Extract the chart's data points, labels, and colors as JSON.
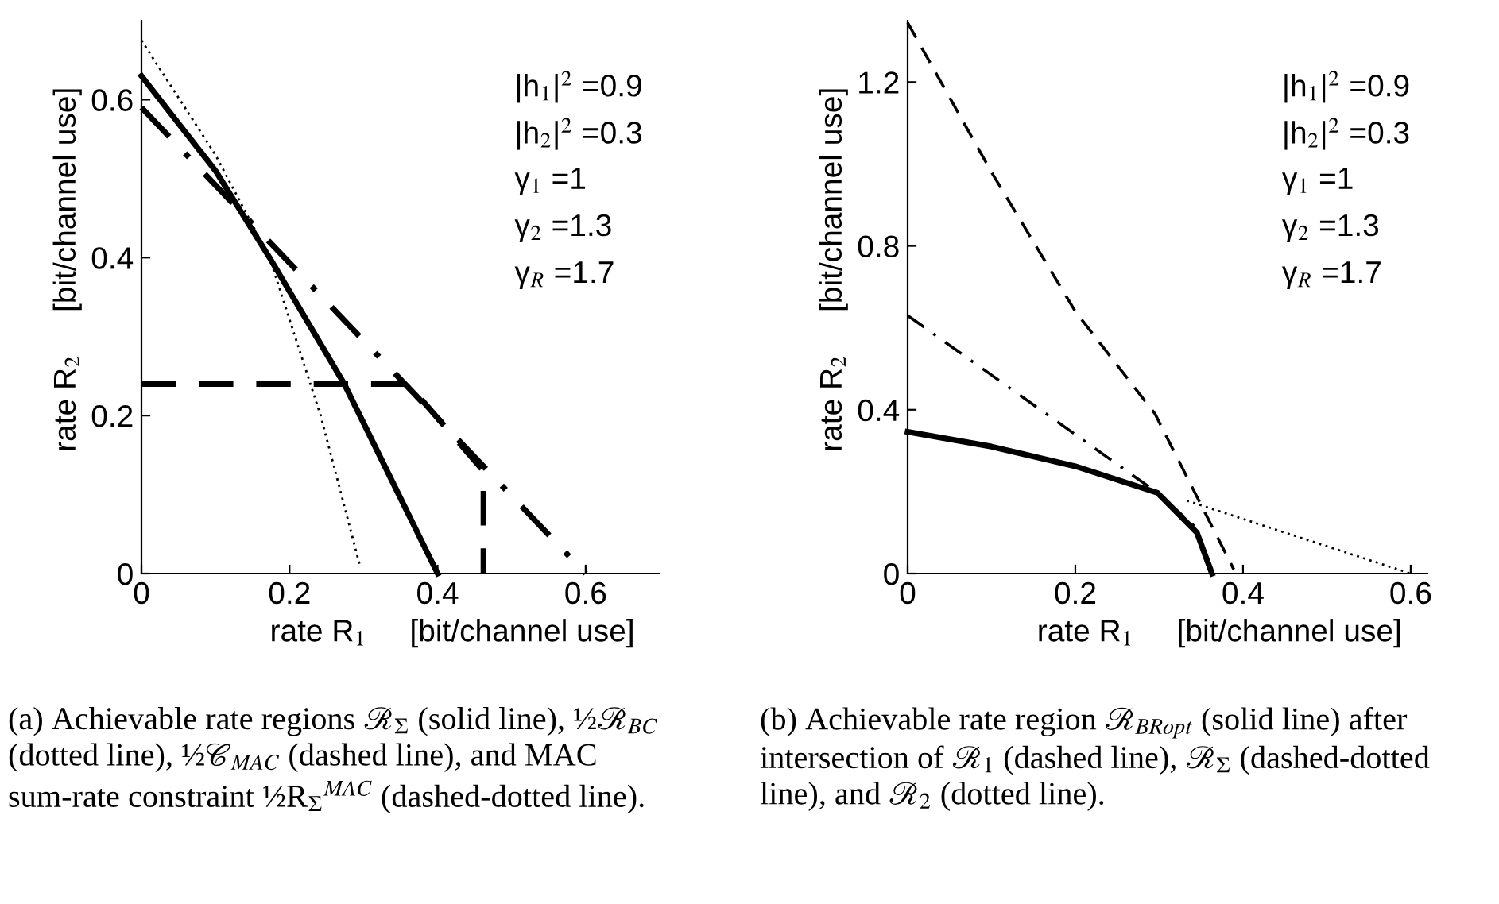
{
  "chart_data": [
    {
      "type": "line",
      "xlabel": "rate R$_{1}$     [bit/channel use]",
      "ylabel": "rate R$_{2}$     [bit/channel use]",
      "xlim": [
        0,
        0.7
      ],
      "xticks": [
        0,
        0.2,
        0.4,
        0.6
      ],
      "ylim": [
        0,
        0.7
      ],
      "yticks": [
        0,
        0.2,
        0.4,
        0.6
      ],
      "grid": false,
      "series": [
        {
          "color": "#000000",
          "line_style": "solid",
          "x": [
            0,
            0.1,
            0.173,
            0.274,
            0.4
          ],
          "values": [
            0.63,
            0.51,
            0.4,
            0.24,
            0
          ]
        },
        {
          "color": "#000000",
          "line_style": "dotted",
          "x": [
            0,
            0.1,
            0.173,
            0.242,
            0.27,
            0.295
          ],
          "values": [
            0.675,
            0.53,
            0.4,
            0.2,
            0.1,
            0.01
          ]
        },
        {
          "color": "#000000",
          "line_style": "dashed",
          "x": [
            0,
            0.36,
            0.462,
            0.462
          ],
          "values": [
            0.24,
            0.24,
            0.13,
            0
          ]
        },
        {
          "color": "#000000",
          "line_style": "dashdot",
          "x": [
            0,
            0.6
          ],
          "values": [
            0.59,
            0
          ]
        }
      ],
      "annotations": [
        "|h$_{1}$|$^{2}$ =0.9",
        "|h$_{2}$|$^{2}$ =0.3",
        "γ$_{1}$ =1",
        "γ$_{2}$ =1.3",
        "γ$_{R}$ =1.7",
        "(a) Achievable rate regions ℛ$_{Σ}$ (solid line), ½ℛ$_{BC}$ (dotted line), ½𝒞$_{MAC}$ (dashed line), and MAC sum-rate constraint ½R$_{Σ}$$^{MAC}$ (dashed-dotted line)."
      ]
    },
    {
      "type": "line",
      "xlabel": "rate R$_{1}$     [bit/channel use]",
      "ylabel": "rate R$_{2}$     [bit/channel use]",
      "xlim": [
        0,
        0.62
      ],
      "xticks": [
        0,
        0.2,
        0.4,
        0.6
      ],
      "ylim": [
        0,
        1.35
      ],
      "yticks": [
        0,
        0.4,
        0.8,
        1.2
      ],
      "grid": false,
      "series": [
        {
          "color": "#000000",
          "line_style": "solid",
          "x": [
            0,
            0.1,
            0.2,
            0.298,
            0.345,
            0.363
          ],
          "values": [
            0.346,
            0.31,
            0.262,
            0.197,
            0.1,
            0
          ]
        },
        {
          "color": "#000000",
          "line_style": "dashed",
          "x": [
            0,
            0.1,
            0.2,
            0.295,
            0.333,
            0.389
          ],
          "values": [
            1.345,
            0.98,
            0.64,
            0.39,
            0.236,
            0.01
          ]
        },
        {
          "color": "#000000",
          "line_style": "dashdot",
          "x": [
            0,
            0.298,
            0.345
          ],
          "values": [
            0.63,
            0.197,
            0.11
          ]
        },
        {
          "color": "#000000",
          "line_style": "dotted",
          "x": [
            0.333,
            0.6
          ],
          "values": [
            0.178,
            0
          ]
        }
      ],
      "annotations": [
        "|h$_{1}$|$^{2}$ =0.9",
        "|h$_{2}$|$^{2}$ =0.3",
        "γ$_{1}$ =1",
        "γ$_{2}$ =1.3",
        "γ$_{R}$ =1.7",
        "(b) Achievable rate region ℛ$_{BRopt}$ (solid line) after intersection of ℛ$_{1}$ (dashed line), ℛ$_{Σ}$ (dashed-dotted line), and ℛ$_{2}$ (dotted line)."
      ]
    }
  ]
}
